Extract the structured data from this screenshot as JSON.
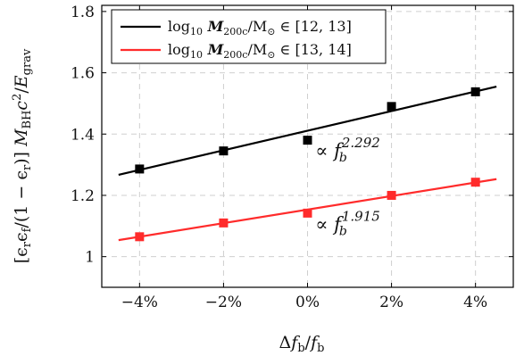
{
  "chart_data": {
    "type": "scatter",
    "xlabel": "Δf_b / f_b",
    "ylabel": "[ε_r ε_f / (1 − ε_r)] M_BH c² / E_grav",
    "xlim": [
      -4.9,
      4.9
    ],
    "ylim": [
      0.9,
      1.82
    ],
    "xticks": [
      -4,
      -2,
      0,
      2,
      4
    ],
    "xtick_labels": [
      "−4%",
      "−2%",
      "0%",
      "2%",
      "4%"
    ],
    "yticks": [
      1.0,
      1.2,
      1.4,
      1.6,
      1.8
    ],
    "ytick_labels": [
      "1",
      "1.2",
      "1.4",
      "1.6",
      "1.8"
    ],
    "grid": true,
    "legend_position": "top-left",
    "series": [
      {
        "name": "log10 M200c/M⊙ ∈ [12, 13]",
        "color": "#000000",
        "x": [
          -4,
          -2,
          0,
          2,
          4
        ],
        "y": [
          1.286,
          1.345,
          1.38,
          1.49,
          1.538
        ],
        "fit_x": [
          -4.5,
          4.5
        ],
        "fit_y": [
          1.267,
          1.555
        ],
        "annotation": {
          "prefix": "∝ f",
          "sub": "b",
          "sup": "2.292",
          "x": 0.1,
          "y": 1.325
        }
      },
      {
        "name": "log10 M200c/M⊙ ∈ [13, 14]",
        "color": "#ff2b2b",
        "x": [
          -4,
          -2,
          0,
          2,
          4
        ],
        "y": [
          1.065,
          1.11,
          1.142,
          1.2,
          1.243
        ],
        "fit_x": [
          -4.5,
          4.5
        ],
        "fit_y": [
          1.054,
          1.253
        ],
        "annotation": {
          "prefix": "∝ f",
          "sub": "b",
          "sup": "1.915",
          "x": 0.1,
          "y": 1.085
        }
      }
    ]
  }
}
